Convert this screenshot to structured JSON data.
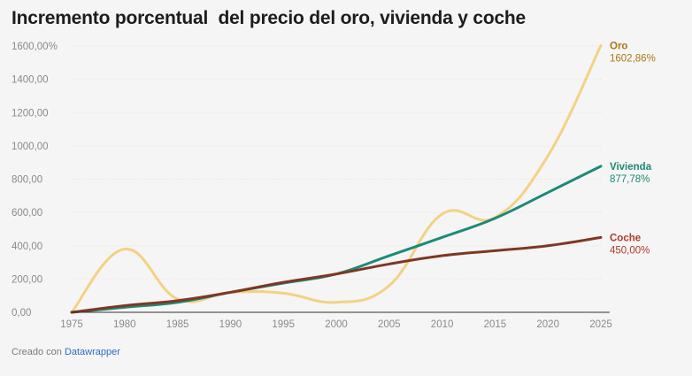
{
  "chart_data": {
    "type": "line",
    "title": "Incremento porcentual  del precio del oro, vivienda y coche",
    "x": [
      1975,
      1980,
      1985,
      1990,
      1995,
      2000,
      2005,
      2010,
      2015,
      2020,
      2025
    ],
    "x_tick_labels": [
      "1975",
      "1980",
      "1985",
      "1990",
      "1995",
      "2000",
      "2005",
      "2010",
      "2015",
      "2020",
      "2025"
    ],
    "ylim": [
      0,
      1600
    ],
    "y_ticks": [
      0,
      200,
      400,
      600,
      800,
      1000,
      1200,
      1400,
      1600
    ],
    "y_tick_labels": [
      "0,00",
      "200,00",
      "400,00",
      "600,00",
      "800,00",
      "1000,00",
      "1200,00",
      "1400,00",
      "1600,00%"
    ],
    "xlabel": "",
    "ylabel": "",
    "grid": true,
    "series": [
      {
        "name": "Oro",
        "color": "#f2d283",
        "label_color": "#a97a14",
        "end_label": "1602,86%",
        "values": [
          0,
          380,
          80,
          120,
          115,
          60,
          160,
          590,
          570,
          940,
          1602.86
        ]
      },
      {
        "name": "Vivienda",
        "color": "#1d8a78",
        "label_color": "#1b8a72",
        "end_label": "877,78%",
        "values": [
          0,
          30,
          60,
          120,
          175,
          230,
          340,
          450,
          565,
          720,
          877.78
        ]
      },
      {
        "name": "Coche",
        "color": "#7f3723",
        "label_color": "#b03a2b",
        "end_label": "450,00%",
        "values": [
          0,
          40,
          70,
          120,
          180,
          230,
          290,
          340,
          370,
          400,
          450
        ]
      }
    ]
  },
  "footer": {
    "prefix": "Creado con",
    "brand": "Datawrapper"
  }
}
